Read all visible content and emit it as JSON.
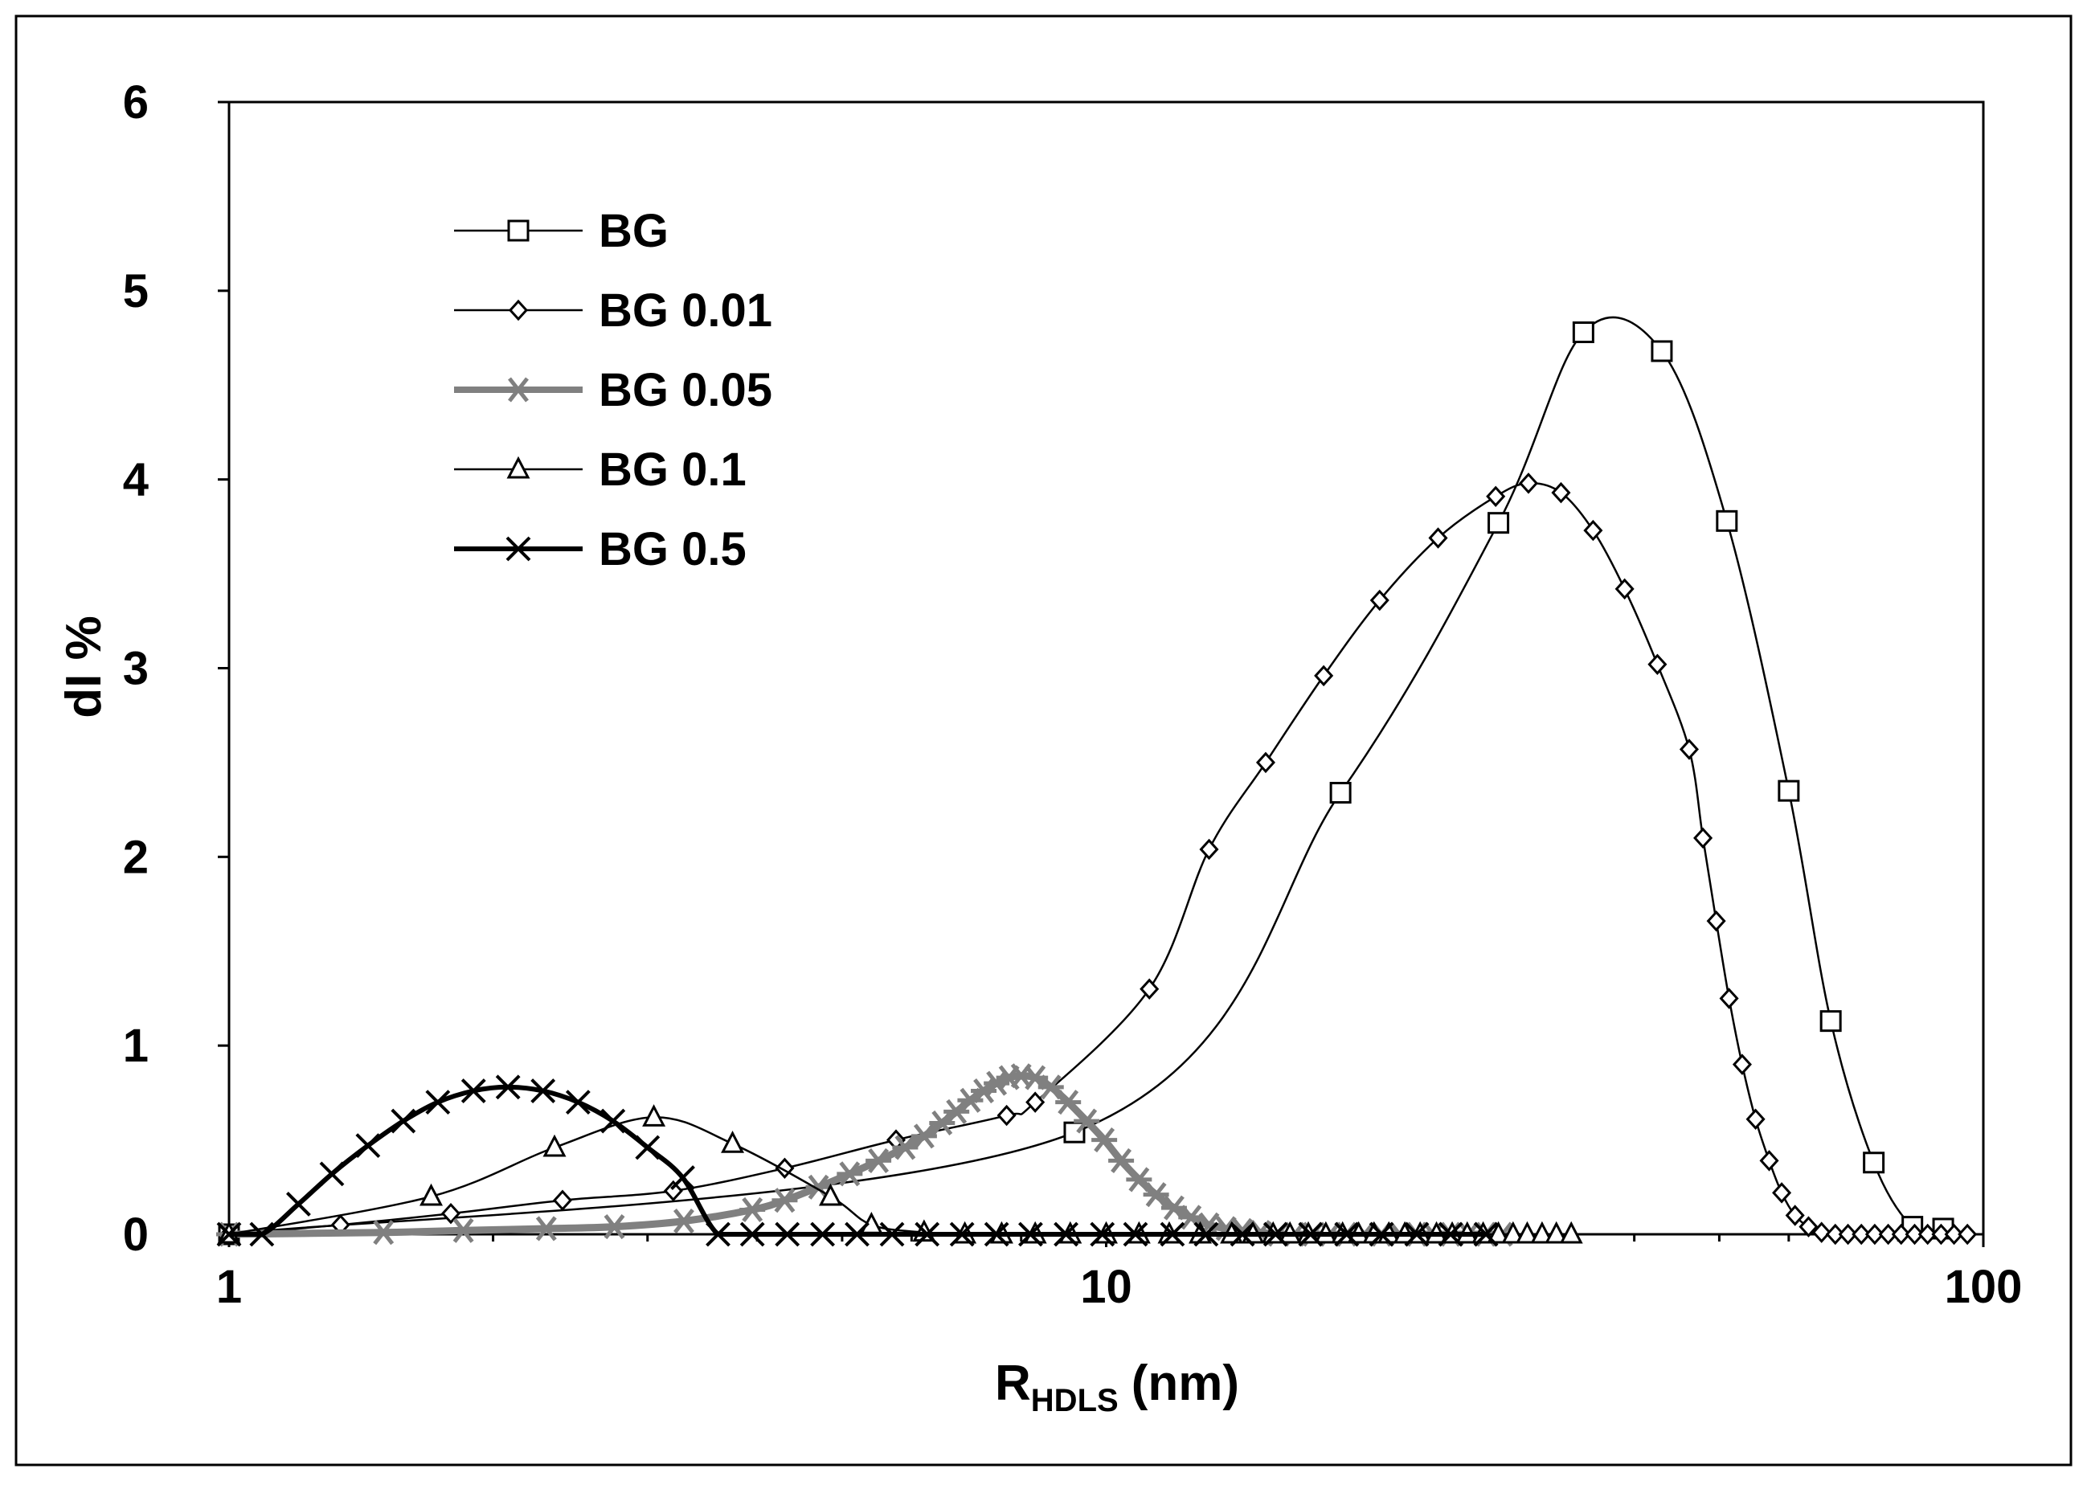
{
  "chart_data": {
    "type": "line",
    "title": "",
    "xlabel": "R",
    "xlabel_subscript": "HDLS",
    "xlabel_unit": "(nm)",
    "ylabel": "dI %",
    "xscale": "log",
    "xlim": [
      1,
      100
    ],
    "ylim": [
      0,
      6
    ],
    "xticks": [
      1,
      10,
      100
    ],
    "xtick_labels": [
      "1",
      "10",
      "100"
    ],
    "yticks": [
      0,
      1,
      2,
      3,
      4,
      5,
      6
    ],
    "ytick_labels": [
      "0",
      "1",
      "2",
      "3",
      "4",
      "5",
      "6"
    ],
    "grid": false,
    "legend_position": "top-left",
    "series": [
      {
        "name": "BG",
        "marker": "square",
        "color": "#000000",
        "line": "thin",
        "x": [
          1,
          9.2,
          18.5,
          28,
          35,
          43,
          51,
          60,
          67,
          75,
          83,
          90
        ],
        "y": [
          0,
          0.54,
          2.34,
          3.77,
          4.78,
          4.68,
          3.78,
          2.35,
          1.13,
          0.38,
          0.04,
          0.03
        ]
      },
      {
        "name": "BG 0.01",
        "marker": "diamond",
        "color": "#000000",
        "line": "thin",
        "x": [
          1,
          1.34,
          1.79,
          2.4,
          3.21,
          4.3,
          5.76,
          7.7,
          8.3,
          11.2,
          13.1,
          15.2,
          17.7,
          20.5,
          23.9,
          27.8,
          30.3,
          33.0,
          35.9,
          39.0,
          42.5,
          46.2,
          47.9,
          49.6,
          51.3,
          53.1,
          55.0,
          57.0,
          58.9,
          61.0,
          63.2,
          65.4,
          67.8,
          70.1,
          72.6,
          75.2,
          77.9,
          80.6,
          83.5,
          86.4,
          89.5,
          92.6,
          95.9
        ],
        "y": [
          0,
          0.05,
          0.11,
          0.18,
          0.23,
          0.35,
          0.5,
          0.63,
          0.7,
          1.3,
          2.04,
          2.5,
          2.96,
          3.36,
          3.69,
          3.91,
          3.98,
          3.93,
          3.73,
          3.42,
          3.02,
          2.57,
          2.1,
          1.66,
          1.25,
          0.9,
          0.61,
          0.39,
          0.22,
          0.1,
          0.04,
          0.01,
          0,
          0,
          0,
          0,
          0,
          0,
          0,
          0,
          0,
          0,
          0
        ]
      },
      {
        "name": "BG 0.05",
        "marker": "asterisk",
        "color": "#808080",
        "line": "thick",
        "x": [
          1,
          1.5,
          1.85,
          2.3,
          2.75,
          3.3,
          3.95,
          4.3,
          4.7,
          5.1,
          5.5,
          5.9,
          6.2,
          6.5,
          6.75,
          7.0,
          7.25,
          7.5,
          7.75,
          8.0,
          8.3,
          8.65,
          9.05,
          9.5,
          9.95,
          10.4,
          10.9,
          11.4,
          11.95,
          12.5,
          13.1,
          13.7,
          14.3,
          15.0,
          15.7,
          16.4,
          17.2,
          18.0,
          18.8,
          19.7,
          20.6,
          21.6,
          22.6,
          23.6,
          24.7,
          25.9,
          27.1,
          28.3
        ],
        "y": [
          0,
          0.01,
          0.02,
          0.03,
          0.04,
          0.07,
          0.13,
          0.18,
          0.25,
          0.32,
          0.39,
          0.46,
          0.52,
          0.59,
          0.65,
          0.71,
          0.76,
          0.8,
          0.83,
          0.84,
          0.83,
          0.78,
          0.7,
          0.6,
          0.5,
          0.39,
          0.29,
          0.21,
          0.14,
          0.09,
          0.05,
          0.03,
          0.02,
          0.01,
          0,
          0,
          0,
          0,
          0,
          0,
          0,
          0,
          0,
          0,
          0,
          0,
          0,
          0
        ]
      },
      {
        "name": "BG 0.1",
        "marker": "triangle",
        "color": "#000000",
        "line": "thin",
        "x": [
          1,
          1.7,
          2.35,
          3.05,
          3.75,
          4.85,
          5.4,
          6.2,
          6.9,
          7.6,
          8.3,
          9.1,
          10.0,
          10.9,
          11.8,
          12.8,
          13.9,
          14.7,
          15.5,
          16.2,
          17.0,
          17.8,
          18.6,
          19.4,
          20.2,
          21.0,
          21.9,
          22.8,
          23.8,
          24.8,
          25.8,
          26.9,
          28.0,
          29.1,
          30.2,
          31.4,
          32.6,
          33.9
        ],
        "y": [
          0,
          0.2,
          0.46,
          0.62,
          0.48,
          0.2,
          0.05,
          0.01,
          0,
          0,
          0,
          0,
          0,
          0,
          0,
          0,
          0,
          0,
          0,
          0,
          0,
          0,
          0,
          0,
          0,
          0,
          0,
          0,
          0,
          0,
          0,
          0,
          0,
          0,
          0,
          0,
          0,
          0
        ]
      },
      {
        "name": "BG 0.5",
        "marker": "x",
        "color": "#000000",
        "line": "thick",
        "x": [
          1,
          1.09,
          1.2,
          1.31,
          1.44,
          1.58,
          1.73,
          1.9,
          2.08,
          2.28,
          2.5,
          2.74,
          3.0,
          3.29,
          3.61,
          3.95,
          4.33,
          4.75,
          5.2,
          5.7,
          6.25,
          6.85,
          7.5,
          8.2,
          9.0,
          9.9,
          10.8,
          11.9,
          13.0,
          14.3,
          15.6,
          17.1,
          18.8,
          20.6,
          22.6,
          24.7,
          27.1
        ],
        "y": [
          0,
          0,
          0.16,
          0.32,
          0.47,
          0.6,
          0.7,
          0.76,
          0.78,
          0.76,
          0.7,
          0.6,
          0.46,
          0.3,
          0,
          0,
          0,
          0,
          0,
          0,
          0,
          0,
          0,
          0,
          0,
          0,
          0,
          0,
          0,
          0,
          0,
          0,
          0,
          0,
          0,
          0,
          0
        ]
      }
    ]
  }
}
